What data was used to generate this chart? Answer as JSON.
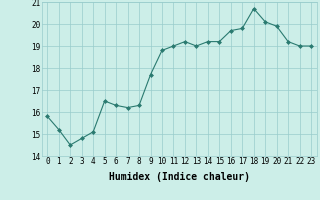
{
  "x": [
    0,
    1,
    2,
    3,
    4,
    5,
    6,
    7,
    8,
    9,
    10,
    11,
    12,
    13,
    14,
    15,
    16,
    17,
    18,
    19,
    20,
    21,
    22,
    23
  ],
  "y": [
    15.8,
    15.2,
    14.5,
    14.8,
    15.1,
    16.5,
    16.3,
    16.2,
    16.3,
    17.7,
    18.8,
    19.0,
    19.2,
    19.0,
    19.2,
    19.2,
    19.7,
    19.8,
    20.7,
    20.1,
    19.9,
    19.2,
    19.0,
    19.0
  ],
  "xlim": [
    -0.5,
    23.5
  ],
  "ylim": [
    14,
    21
  ],
  "yticks": [
    14,
    15,
    16,
    17,
    18,
    19,
    20,
    21
  ],
  "xticks": [
    0,
    1,
    2,
    3,
    4,
    5,
    6,
    7,
    8,
    9,
    10,
    11,
    12,
    13,
    14,
    15,
    16,
    17,
    18,
    19,
    20,
    21,
    22,
    23
  ],
  "xlabel": "Humidex (Indice chaleur)",
  "line_color": "#2a7a70",
  "marker": "D",
  "marker_size": 2.0,
  "bg_color": "#cceee8",
  "grid_color": "#99cccc",
  "tick_label_fontsize": 5.5,
  "xlabel_fontsize": 7.0
}
